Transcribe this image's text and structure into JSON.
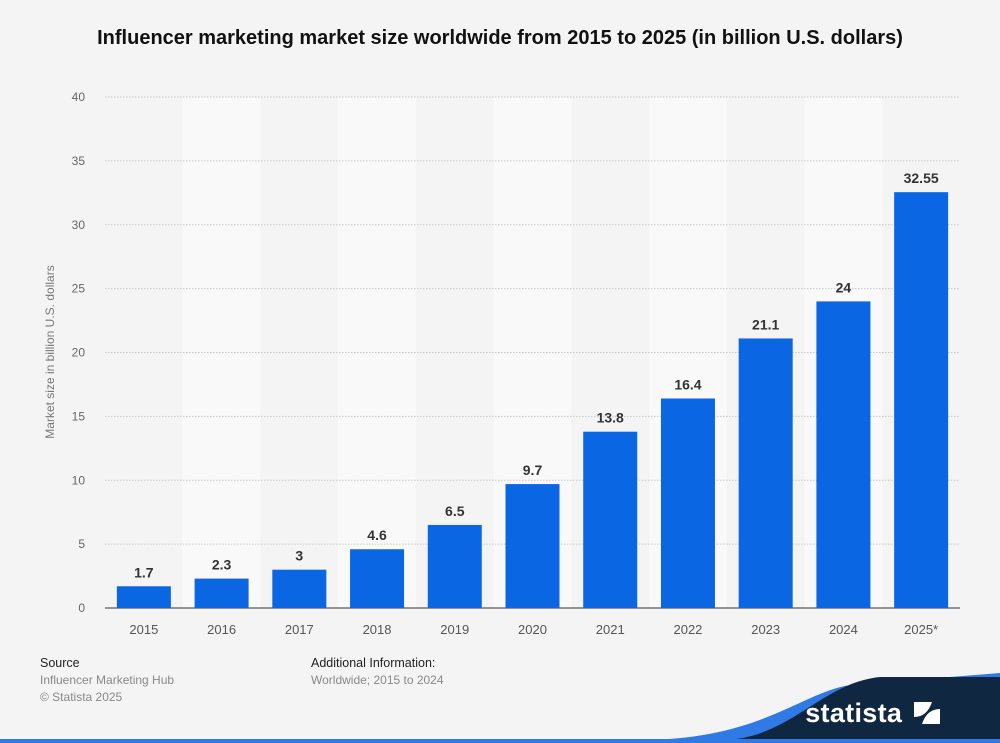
{
  "chart_data": {
    "type": "bar",
    "title": "Influencer marketing market size worldwide from 2015 to 2025 (in billion U.S. dollars)",
    "xlabel": "",
    "ylabel": "Market size in billion U.S. dollars",
    "categories": [
      "2015",
      "2016",
      "2017",
      "2018",
      "2019",
      "2020",
      "2021",
      "2022",
      "2023",
      "2024",
      "2025*"
    ],
    "values": [
      1.7,
      2.3,
      3,
      4.6,
      6.5,
      9.7,
      13.8,
      16.4,
      21.1,
      24,
      32.55
    ],
    "data_labels": [
      "1.7",
      "2.3",
      "3",
      "4.6",
      "6.5",
      "9.7",
      "13.8",
      "16.4",
      "21.1",
      "24",
      "32.55"
    ],
    "ylim": [
      0,
      40
    ],
    "yticks": [
      0,
      5,
      10,
      15,
      20,
      25,
      30,
      35,
      40
    ],
    "grid": true,
    "bar_color": "#0b66e4"
  },
  "footer": {
    "source_heading": "Source",
    "source_lines": [
      "Influencer Marketing Hub",
      "© Statista 2025"
    ],
    "info_heading": "Additional Information:",
    "info_lines": [
      "Worldwide; 2015 to 2024"
    ]
  },
  "brand": {
    "name": "statista",
    "navy": "#0f2740",
    "blue": "#2f7ae5"
  }
}
